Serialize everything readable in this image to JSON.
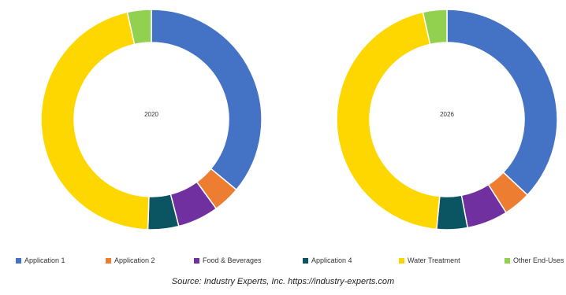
{
  "chart_data": [
    {
      "type": "donut",
      "title": "2020",
      "categories": [
        "Application 1",
        "Application 2",
        "Food & Beverages",
        "Application 4",
        "Water Treatment",
        "Other End-Uses"
      ],
      "values": [
        36,
        4,
        6,
        4.5,
        46,
        3.5
      ]
    },
    {
      "type": "donut",
      "title": "2026",
      "categories": [
        "Application 1",
        "Application 2",
        "Food & Beverages",
        "Application 4",
        "Water Treatment",
        "Other End-Uses"
      ],
      "values": [
        37,
        4,
        6,
        4.5,
        45,
        3.5
      ]
    }
  ],
  "legend": [
    {
      "label": "Application 1",
      "color": "#4472c4"
    },
    {
      "label": "Application 2",
      "color": "#ed7d31"
    },
    {
      "label": "Food & Beverages",
      "color": "#7030a0"
    },
    {
      "label": "Application 4",
      "color": "#0b5563"
    },
    {
      "label": "Water Treatment",
      "color": "#ffd700"
    },
    {
      "label": "Other End-Uses",
      "color": "#92d050"
    }
  ],
  "source": "Source: Industry Experts, Inc. https://industry-experts.com"
}
